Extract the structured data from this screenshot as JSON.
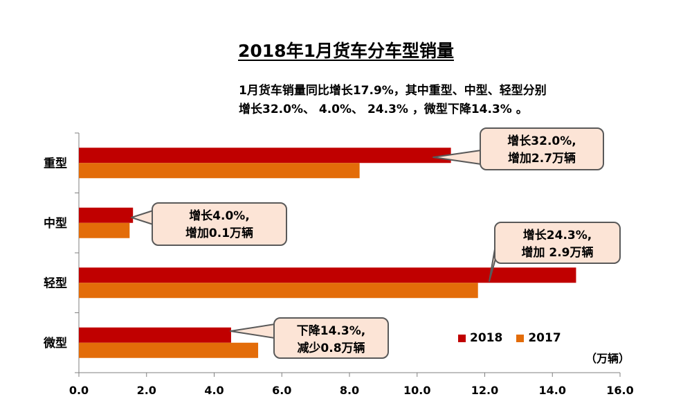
{
  "chart_data": {
    "type": "bar",
    "orientation": "horizontal",
    "title": "2018年1月货车分车型销量",
    "summary_lines": [
      "1月货车销量同比增长17.9%，其中重型、中型、轻型分别",
      "增长32.0%、 4.0%、 24.3% ，微型下降14.3% 。"
    ],
    "unit": "（万辆）",
    "categories": [
      "重型",
      "中型",
      "轻型",
      "微型"
    ],
    "series": [
      {
        "name": "2018",
        "color": "#c00000",
        "values": [
          11.0,
          1.6,
          14.7,
          4.5
        ]
      },
      {
        "name": "2017",
        "color": "#e36c09",
        "values": [
          8.3,
          1.5,
          11.8,
          5.3
        ]
      }
    ],
    "xlim": [
      0,
      16
    ],
    "xticks": [
      "0.0",
      "2.0",
      "4.0",
      "6.0",
      "8.0",
      "10.0",
      "12.0",
      "14.0",
      "16.0"
    ],
    "grid": false,
    "legend_position": "bottom-right",
    "annotations": [
      {
        "category": "重型",
        "lines": [
          "增长32.0%,",
          "增加2.7万辆"
        ]
      },
      {
        "category": "中型",
        "lines": [
          "增长4.0%,",
          "增加0.1万辆"
        ]
      },
      {
        "category": "轻型",
        "lines": [
          "增长24.3%,",
          "增加 2.9万辆"
        ]
      },
      {
        "category": "微型",
        "lines": [
          "下降14.3%,",
          "减少0.8万辆"
        ]
      }
    ],
    "callout_fill": "#fce4d6",
    "callout_stroke": "#595959"
  }
}
